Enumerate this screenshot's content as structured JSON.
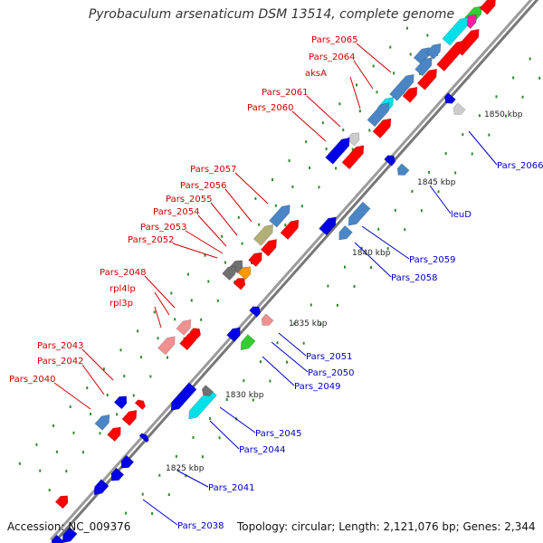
{
  "title": "Pyrobaculum arsenaticum DSM 13514, complete genome",
  "footer": {
    "accession": "Accession: NC_009376",
    "topology": "Topology: circular; Length: 2,121,076 bp; Genes: 2,344"
  },
  "colors": {
    "forward_label": "#cc0000",
    "reverse_label": "#0000cc",
    "backbone": "#888888",
    "red": "#ff0000",
    "blue": "#0000e6",
    "steelblue": "#4a86c5",
    "cyan": "#00e0e8",
    "pink": "#f09090",
    "green": "#33cc33",
    "olive": "#b3b077",
    "gray": "#707070",
    "orange": "#ff9900",
    "magenta": "#ee2299",
    "lightgray": "#cccccc"
  },
  "kbp_ticks": [
    {
      "label": "1850 kbp"
    },
    {
      "label": "1845 kbp"
    },
    {
      "label": "1840 kbp"
    },
    {
      "label": "1835 kbp"
    },
    {
      "label": "1830 kbp"
    },
    {
      "label": "1825 kbp"
    }
  ],
  "forward_labels": [
    {
      "text": "Pars_2065"
    },
    {
      "text": "Pars_2064"
    },
    {
      "text": "aksA"
    },
    {
      "text": "Pars_2061"
    },
    {
      "text": "Pars_2060"
    },
    {
      "text": "Pars_2057"
    },
    {
      "text": "Pars_2056"
    },
    {
      "text": "Pars_2055"
    },
    {
      "text": "Pars_2054"
    },
    {
      "text": "Pars_2053"
    },
    {
      "text": "Pars_2052"
    },
    {
      "text": "Pars_2048"
    },
    {
      "text": "rpl4lp"
    },
    {
      "text": "rpl3p"
    },
    {
      "text": "Pars_2043"
    },
    {
      "text": "Pars_2042"
    },
    {
      "text": "Pars_2040"
    }
  ],
  "reverse_labels": [
    {
      "text": "Pars_2066"
    },
    {
      "text": "leuD"
    },
    {
      "text": "Pars_2059"
    },
    {
      "text": "Pars_2058"
    },
    {
      "text": "Pars_2051"
    },
    {
      "text": "Pars_2050"
    },
    {
      "text": "Pars_2049"
    },
    {
      "text": "Pars_2045"
    },
    {
      "text": "Pars_2044"
    },
    {
      "text": "Pars_2041"
    },
    {
      "text": "Pars_2038"
    }
  ]
}
